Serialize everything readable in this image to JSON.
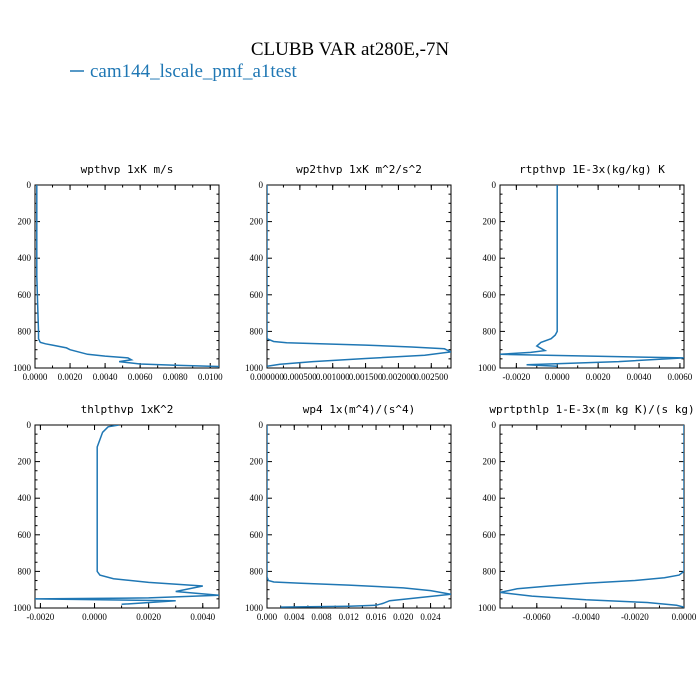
{
  "figure": {
    "title": "CLUBB VAR at280E,-7N",
    "legend_label": "cam144_lscale_pmf_a1test",
    "legend_color": "#1f77b4"
  },
  "chart_data": [
    {
      "type": "line",
      "title": "wpthvp  1xK m/s",
      "xlim": [
        0,
        0.0105
      ],
      "ylim": [
        1000,
        0
      ],
      "xticks": [
        0,
        0.002,
        0.004,
        0.006,
        0.008,
        0.01
      ],
      "xtick_labels": [
        "0.0000",
        "0.0020",
        "0.0040",
        "0.0060",
        "0.0080",
        "0.0100"
      ],
      "yticks": [
        0,
        200,
        400,
        600,
        800,
        1000
      ],
      "ytick_labels": [
        "0",
        "200",
        "400",
        "600",
        "800",
        "1000"
      ],
      "series": [
        {
          "x": [
            0.0001,
            0.0001,
            0.0001,
            0.0002,
            0.0002,
            0.0003,
            0.0006,
            0.001,
            0.0018,
            0.002,
            0.003,
            0.004,
            0.0053,
            0.0055,
            0.0048,
            0.006,
            0.008,
            0.0105
          ],
          "y": [
            0,
            200,
            500,
            800,
            840,
            860,
            868,
            875,
            890,
            900,
            925,
            935,
            945,
            955,
            965,
            978,
            985,
            992
          ]
        }
      ]
    },
    {
      "type": "line",
      "title": "wp2thvp  1xK m^2/s^2",
      "xlim": [
        0,
        0.0028
      ],
      "ylim": [
        1000,
        0
      ],
      "xticks": [
        0,
        0.0005,
        0.001,
        0.0015,
        0.002,
        0.0025
      ],
      "xtick_labels": [
        "0.000000",
        "0.000500",
        "0.001000",
        "0.001500",
        "0.002000",
        "0.002500"
      ],
      "yticks": [
        0,
        200,
        400,
        600,
        800,
        1000
      ],
      "ytick_labels": [
        "0",
        "200",
        "400",
        "600",
        "800",
        "1000"
      ],
      "series": [
        {
          "x": [
            0,
            0,
            0,
            0,
            0.0001,
            0.0003,
            0.0008,
            0.0015,
            0.0022,
            0.0027,
            0.0028,
            0.0024,
            0.0015,
            0.0007,
            0.0002,
            0
          ],
          "y": [
            0,
            500,
            820,
            840,
            855,
            862,
            868,
            875,
            885,
            895,
            912,
            930,
            948,
            965,
            980,
            990
          ]
        }
      ]
    },
    {
      "type": "line",
      "title": "rtpthvp  1E-3x(kg/kg) K",
      "xlim": [
        -0.0028,
        0.0062
      ],
      "ylim": [
        1000,
        0
      ],
      "xticks": [
        -0.002,
        0,
        0.002,
        0.004,
        0.006
      ],
      "xtick_labels": [
        "-0.0020",
        "0.0000",
        "0.0020",
        "0.0040",
        "0.0060"
      ],
      "yticks": [
        0,
        200,
        400,
        600,
        800,
        1000
      ],
      "ytick_labels": [
        "0",
        "200",
        "400",
        "600",
        "800",
        "1000"
      ],
      "series": [
        {
          "x": [
            0,
            0,
            0,
            0,
            -0.0001,
            -0.0003,
            -0.0008,
            -0.001,
            -0.0006,
            -0.0013,
            -0.0028,
            0.0062,
            0.003,
            -0.0015,
            0
          ],
          "y": [
            0,
            200,
            500,
            800,
            820,
            840,
            860,
            880,
            905,
            915,
            925,
            945,
            965,
            982,
            990
          ]
        }
      ]
    },
    {
      "type": "line",
      "title": "thlpthvp  1xK^2",
      "xlim": [
        -0.0022,
        0.0046
      ],
      "ylim": [
        1000,
        0
      ],
      "xticks": [
        -0.002,
        0,
        0.002,
        0.004
      ],
      "xtick_labels": [
        "-0.0020",
        "0.0000",
        "0.0020",
        "0.0040"
      ],
      "yticks": [
        0,
        200,
        400,
        600,
        800,
        1000
      ],
      "ytick_labels": [
        "0",
        "200",
        "400",
        "600",
        "800",
        "1000"
      ],
      "series": [
        {
          "x": [
            0.0009,
            0.0005,
            0.0003,
            0.0002,
            0.0001,
            0.0001,
            0.0001,
            0.0001,
            0.0002,
            0.0007,
            0.002,
            0.004,
            0.003,
            0.0046,
            0.002,
            -0.0022,
            0.003,
            0.001
          ],
          "y": [
            0,
            10,
            40,
            80,
            120,
            200,
            500,
            800,
            820,
            840,
            860,
            880,
            910,
            930,
            945,
            950,
            960,
            980
          ]
        }
      ]
    },
    {
      "type": "line",
      "title": "wp4  1x(m^4)/(s^4)",
      "xlim": [
        0,
        0.027
      ],
      "ylim": [
        1000,
        0
      ],
      "xticks": [
        0,
        0.004,
        0.008,
        0.012,
        0.016,
        0.02,
        0.024
      ],
      "xtick_labels": [
        "0.000",
        "0.004",
        "0.008",
        "0.012",
        "0.016",
        "0.020",
        "0.024"
      ],
      "yticks": [
        0,
        200,
        400,
        600,
        800,
        1000
      ],
      "ytick_labels": [
        "0",
        "200",
        "400",
        "600",
        "800",
        "1000"
      ],
      "series": [
        {
          "x": [
            0,
            0,
            0,
            0.0002,
            0.001,
            0.005,
            0.012,
            0.02,
            0.024,
            0.027,
            0.022,
            0.018,
            0.017,
            0.016,
            0.012,
            0.006,
            0.002
          ],
          "y": [
            0,
            500,
            830,
            850,
            858,
            865,
            875,
            890,
            905,
            925,
            945,
            960,
            975,
            985,
            990,
            993,
            995
          ]
        }
      ]
    },
    {
      "type": "line",
      "title": "wprtpthlp  1-E-3x(m kg K)/(s kg)",
      "xlim": [
        -0.0075,
        0
      ],
      "ylim": [
        1000,
        0
      ],
      "xticks": [
        -0.006,
        -0.004,
        -0.002,
        0
      ],
      "xtick_labels": [
        "-0.0060",
        "-0.0040",
        "-0.0020",
        "0.0000"
      ],
      "yticks": [
        0,
        200,
        400,
        600,
        800,
        1000
      ],
      "ytick_labels": [
        "0",
        "200",
        "400",
        "600",
        "800",
        "1000"
      ],
      "series": [
        {
          "x": [
            0,
            0,
            0,
            -0.0002,
            -0.0008,
            -0.002,
            -0.004,
            -0.0055,
            -0.0068,
            -0.0075,
            -0.0062,
            -0.004,
            -0.0015,
            -0.0003,
            0
          ],
          "y": [
            0,
            200,
            800,
            820,
            835,
            850,
            865,
            880,
            895,
            915,
            935,
            955,
            970,
            985,
            995
          ]
        }
      ]
    }
  ]
}
